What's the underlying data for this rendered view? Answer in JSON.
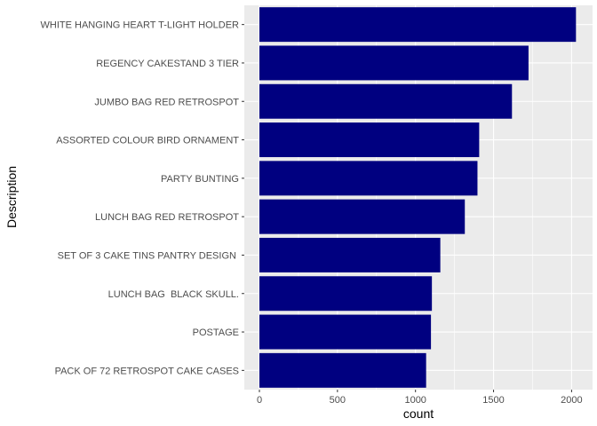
{
  "chart_data": {
    "type": "bar",
    "orientation": "horizontal",
    "xlabel": "count",
    "ylabel": "Description",
    "xlim": [
      0,
      2100
    ],
    "x_ticks": [
      0,
      500,
      1000,
      1500,
      2000
    ],
    "grid": true,
    "categories": [
      "WHITE HANGING HEART T-LIGHT HOLDER",
      "REGENCY CAKESTAND 3 TIER",
      "JUMBO BAG RED RETROSPOT",
      "ASSORTED COLOUR BIRD ORNAMENT",
      "PARTY BUNTING",
      "LUNCH BAG RED RETROSPOT",
      "SET OF 3 CAKE TINS PANTRY DESIGN ",
      "LUNCH BAG  BLACK SKULL.",
      "POSTAGE",
      "PACK OF 72 RETROSPOT CAKE CASES"
    ],
    "values": [
      2028,
      1724,
      1618,
      1408,
      1397,
      1316,
      1159,
      1105,
      1099,
      1068
    ],
    "bar_color": "#000080",
    "panel_color": "#ebebeb",
    "grid_color": "#ffffff"
  }
}
